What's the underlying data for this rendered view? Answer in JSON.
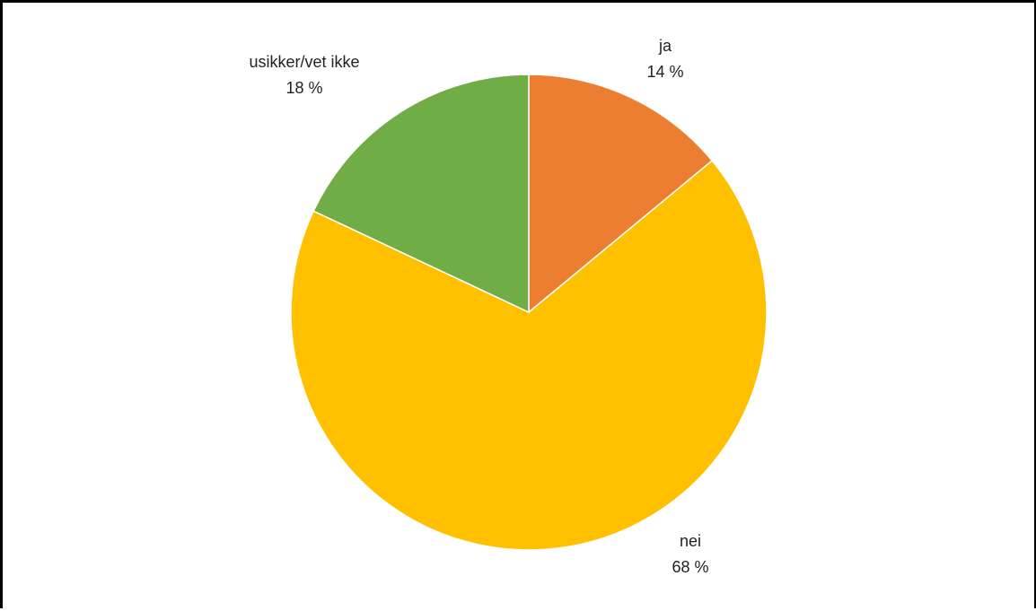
{
  "chart_data": {
    "type": "pie",
    "title": "",
    "slices": [
      {
        "name": "ja",
        "percent_label": "14 %",
        "value": 14,
        "color": "#ED7D31"
      },
      {
        "name": "nei",
        "percent_label": "68 %",
        "value": 68,
        "color": "#FFC000"
      },
      {
        "name": "usikker/vet ikke",
        "percent_label": "18 %",
        "value": 18,
        "color": "#70AD47"
      }
    ],
    "start_angle_deg": 0,
    "direction": "clockwise"
  }
}
